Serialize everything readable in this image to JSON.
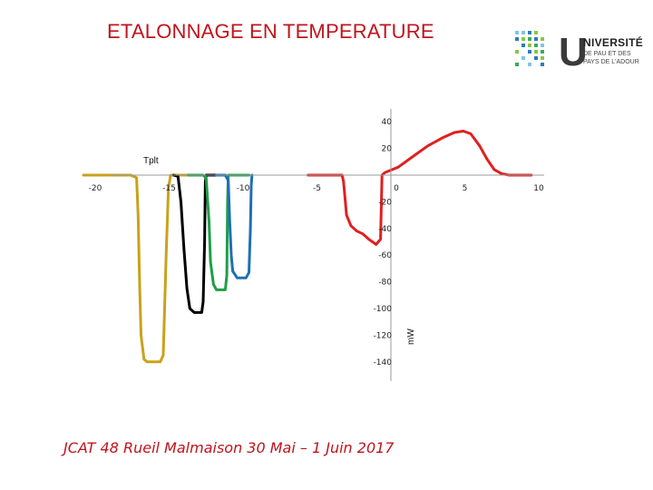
{
  "slide": {
    "title": "ETALONNAGE EN TEMPERATURE",
    "footer": "JCAT 48 Rueil Malmaison 30 Mai – 1 Juin 2017"
  },
  "logo": {
    "letter": "U",
    "word": "NIVERSITÉ",
    "line1": "DE PAU ET DES",
    "line2": "PAYS DE L'ADOUR"
  },
  "chart_data": {
    "type": "line",
    "xlabel": "Tplt",
    "ylabel": "mW",
    "xlim": [
      -20,
      10
    ],
    "ylim": [
      -145,
      45
    ],
    "x_ticks": [
      -20,
      -15,
      -10,
      -5,
      0,
      5,
      10
    ],
    "y_ticks": [
      40,
      20,
      0,
      -20,
      -40,
      -60,
      -80,
      -100,
      -120,
      -140
    ],
    "series": [
      {
        "color": "#c8a21c",
        "points": [
          [
            -20.8,
            0
          ],
          [
            -17.6,
            0
          ],
          [
            -17.2,
            -2
          ],
          [
            -17.1,
            -30
          ],
          [
            -17.0,
            -80
          ],
          [
            -16.9,
            -120
          ],
          [
            -16.7,
            -138
          ],
          [
            -16.5,
            -140
          ],
          [
            -15.6,
            -140
          ],
          [
            -15.4,
            -135
          ],
          [
            -15.2,
            -60
          ],
          [
            -15.05,
            -10
          ],
          [
            -14.9,
            0
          ],
          [
            -13.2,
            0
          ]
        ]
      },
      {
        "color": "#000000",
        "points": [
          [
            -14.7,
            0
          ],
          [
            -14.4,
            -1
          ],
          [
            -14.2,
            -20
          ],
          [
            -14.0,
            -55
          ],
          [
            -13.8,
            -85
          ],
          [
            -13.6,
            -100
          ],
          [
            -13.3,
            -103
          ],
          [
            -12.8,
            -103
          ],
          [
            -12.7,
            -95
          ],
          [
            -12.6,
            -50
          ],
          [
            -12.55,
            -5
          ],
          [
            -12.5,
            0
          ],
          [
            -11.2,
            0
          ]
        ]
      },
      {
        "color": "#1f9e48",
        "points": [
          [
            -13.7,
            0
          ],
          [
            -12.7,
            0
          ],
          [
            -12.5,
            -2
          ],
          [
            -12.3,
            -35
          ],
          [
            -12.2,
            -65
          ],
          [
            -12.0,
            -82
          ],
          [
            -11.8,
            -86
          ],
          [
            -11.2,
            -86
          ],
          [
            -11.1,
            -75
          ],
          [
            -11.05,
            -20
          ],
          [
            -11.0,
            0
          ],
          [
            -9.6,
            0
          ]
        ]
      },
      {
        "color": "#1f6fb5",
        "points": [
          [
            -11.8,
            0
          ],
          [
            -11.2,
            0
          ],
          [
            -11.0,
            -4
          ],
          [
            -10.9,
            -35
          ],
          [
            -10.8,
            -60
          ],
          [
            -10.7,
            -72
          ],
          [
            -10.4,
            -77
          ],
          [
            -9.8,
            -77
          ],
          [
            -9.6,
            -73
          ],
          [
            -9.5,
            -40
          ],
          [
            -9.45,
            -8
          ],
          [
            -9.4,
            0
          ]
        ]
      },
      {
        "color": "#e02020",
        "points": [
          [
            -5.6,
            0
          ],
          [
            -3.3,
            0
          ],
          [
            -3.2,
            -5
          ],
          [
            -3.0,
            -30
          ],
          [
            -2.7,
            -38
          ],
          [
            -2.3,
            -42
          ],
          [
            -1.9,
            -44
          ],
          [
            -1.5,
            -48
          ],
          [
            -1.0,
            -52
          ],
          [
            -0.7,
            -48
          ],
          [
            -0.6,
            0
          ],
          [
            -0.4,
            2
          ],
          [
            0.5,
            6
          ],
          [
            1.5,
            14
          ],
          [
            2.5,
            22
          ],
          [
            3.5,
            28
          ],
          [
            4.3,
            32
          ],
          [
            4.9,
            33
          ],
          [
            5.4,
            31
          ],
          [
            6.0,
            22
          ],
          [
            6.5,
            12
          ],
          [
            7.0,
            4
          ],
          [
            7.5,
            1
          ],
          [
            8.0,
            0
          ],
          [
            9.5,
            0
          ]
        ]
      }
    ]
  }
}
